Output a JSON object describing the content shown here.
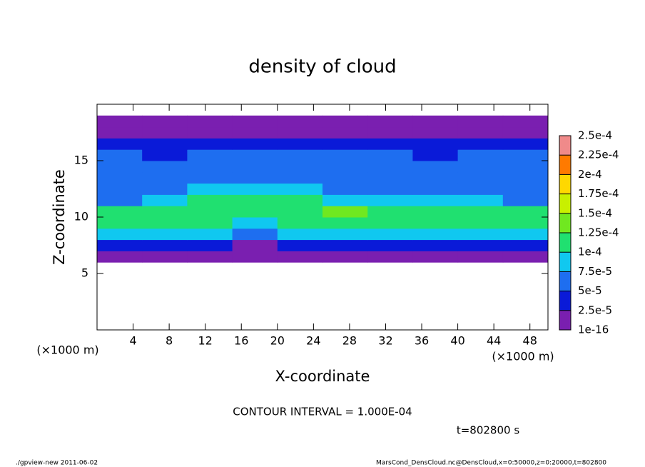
{
  "chart_data": {
    "type": "heatmap",
    "title": "density of cloud",
    "x_label": "X-coordinate",
    "y_label": "Z-coordinate",
    "x_unit": "(×1000 m)",
    "y_unit": "(×1000 m)",
    "annotation": "CONTOUR INTERVAL = 1.000E-04",
    "time_label": "t=802800 s",
    "footer_left": "./gpview-new   2011-06-02",
    "footer_right": "MarsCond_DensCloud.nc@DensCloud,x=0:50000,z=0:20000,t=802800",
    "xlim": [
      0,
      50
    ],
    "ylim": [
      0,
      20
    ],
    "xticks": [
      4,
      8,
      12,
      16,
      20,
      24,
      28,
      32,
      36,
      40,
      44,
      48
    ],
    "yticks": [
      5,
      10,
      15
    ],
    "x_bins": [
      0,
      5,
      10,
      15,
      20,
      25,
      30,
      35,
      40,
      45,
      50
    ],
    "y_bins": [
      6,
      7,
      8,
      9,
      10,
      11,
      12,
      13,
      14,
      15,
      16,
      17,
      18,
      19
    ],
    "values": [
      [
        1e-05,
        1e-05,
        1e-05,
        1e-05,
        1e-05,
        1e-05,
        1e-05,
        1e-05,
        1e-05,
        1e-05
      ],
      [
        3e-05,
        3e-05,
        2.5e-05,
        2e-05,
        3e-05,
        3e-05,
        3e-05,
        3e-05,
        3e-05,
        3e-05
      ],
      [
        9e-05,
        8.5e-05,
        8e-05,
        6e-05,
        9e-05,
        9.5e-05,
        9.5e-05,
        9e-05,
        9e-05,
        9e-05
      ],
      [
        0.00011,
        0.000105,
        0.0001,
        9e-05,
        0.00011,
        0.000115,
        0.000115,
        0.00011,
        0.00011,
        0.00011
      ],
      [
        0.000105,
        0.0001,
        0.00011,
        0.000115,
        0.00012,
        0.000125,
        0.00012,
        0.000115,
        0.00011,
        0.000105
      ],
      [
        7e-05,
        7.5e-05,
        0.0001,
        0.000105,
        0.000105,
        9.5e-05,
        9e-05,
        8.5e-05,
        8e-05,
        7e-05
      ],
      [
        6e-05,
        6e-05,
        7.5e-05,
        8.5e-05,
        8e-05,
        7e-05,
        6.5e-05,
        6e-05,
        6e-05,
        6e-05
      ],
      [
        5.5e-05,
        5.5e-05,
        6e-05,
        6.5e-05,
        6e-05,
        6e-05,
        5.5e-05,
        5.5e-05,
        5.5e-05,
        5.5e-05
      ],
      [
        5e-05,
        5e-05,
        5.5e-05,
        5.5e-05,
        5.5e-05,
        5e-05,
        5e-05,
        5e-05,
        5e-05,
        5e-05
      ],
      [
        5e-05,
        4.5e-05,
        5e-05,
        5e-05,
        5e-05,
        5e-05,
        5e-05,
        4.5e-05,
        5e-05,
        5e-05
      ],
      [
        3.5e-05,
        3.5e-05,
        3.5e-05,
        3.5e-05,
        3.5e-05,
        3.5e-05,
        3.5e-05,
        3.5e-05,
        3.5e-05,
        3.5e-05
      ],
      [
        1.5e-05,
        1.5e-05,
        1.5e-05,
        1.5e-05,
        1.5e-05,
        1.5e-05,
        1.5e-05,
        1.5e-05,
        1.5e-05,
        1.5e-05
      ],
      [
        5e-06,
        5e-06,
        5e-06,
        5e-06,
        5e-06,
        5e-06,
        5e-06,
        5e-06,
        5e-06,
        5e-06
      ]
    ],
    "colorbar": {
      "lim": [
        1e-16,
        0.00025
      ],
      "ticks": [
        {
          "value": 1e-16,
          "label": "1e-16"
        },
        {
          "value": 2.5e-05,
          "label": "2.5e-5"
        },
        {
          "value": 5e-05,
          "label": "5e-5"
        },
        {
          "value": 7.5e-05,
          "label": "7.5e-5"
        },
        {
          "value": 0.0001,
          "label": "1e-4"
        },
        {
          "value": 0.000125,
          "label": "1.25e-4"
        },
        {
          "value": 0.00015,
          "label": "1.5e-4"
        },
        {
          "value": 0.000175,
          "label": "1.75e-4"
        },
        {
          "value": 0.0002,
          "label": "2e-4"
        },
        {
          "value": 0.000225,
          "label": "2.25e-4"
        },
        {
          "value": 0.00025,
          "label": "2.5e-4"
        }
      ],
      "colors": [
        "#7a1fb0",
        "#0a1ad8",
        "#1e6ef0",
        "#10c8f0",
        "#20e070",
        "#70e820",
        "#c8f000",
        "#ffd800",
        "#ff7a00",
        "#f08a8a"
      ]
    }
  }
}
